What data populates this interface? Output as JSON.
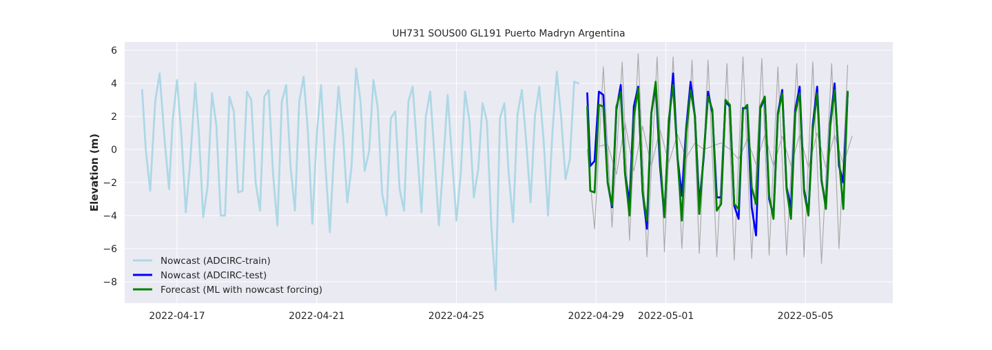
{
  "chart_data": {
    "type": "line",
    "title": "UH731 SOUS00 GL191 Puerto Madryn Argentina",
    "xlabel": "",
    "ylabel": "Elevation (m)",
    "x_axis": {
      "type": "date",
      "start": "2022-04-15T12:00",
      "end": "2022-05-07T12:00"
    },
    "ylim": [
      -9.3,
      6.5
    ],
    "grid": true,
    "legend_placement": "lower-left",
    "x_ticks": [
      "2022-04-17",
      "2022-04-21",
      "2022-04-25",
      "2022-04-29",
      "2022-05-01",
      "2022-05-05"
    ],
    "y_ticks": [
      6,
      4,
      2,
      0,
      -2,
      -4,
      -6,
      -8
    ],
    "colors": {
      "background": "#eaeaf2",
      "grid": "#ffffff",
      "train": "#add8e6",
      "test": "#0000ff",
      "forecast": "#008000",
      "observed": "#aaaaaa"
    },
    "series": [
      {
        "name": "",
        "role": "observed",
        "x": [
          "2022-04-28T18:00",
          "2022-04-28T23:00",
          "2022-04-29T05:00",
          "2022-04-29T11:00",
          "2022-04-29T18:00",
          "2022-04-29T23:00",
          "2022-04-30T05:00",
          "2022-04-30T11:00",
          "2022-04-30T18:00",
          "2022-04-30T23:00",
          "2022-05-01T05:00",
          "2022-05-01T11:00",
          "2022-05-01T18:00",
          "2022-05-01T23:00",
          "2022-05-02T05:00",
          "2022-05-02T11:00",
          "2022-05-02T18:00",
          "2022-05-02T23:00",
          "2022-05-03T05:00",
          "2022-05-03T11:00",
          "2022-05-03T18:00",
          "2022-05-03T23:00",
          "2022-05-04T05:00",
          "2022-05-04T11:00",
          "2022-05-04T18:00",
          "2022-05-04T23:00",
          "2022-05-05T05:00",
          "2022-05-05T11:00",
          "2022-05-05T18:00",
          "2022-05-05T23:00",
          "2022-05-06T05:00"
        ],
        "values": [
          0.0,
          -4.8,
          5.0,
          -4.7,
          5.3,
          -5.5,
          5.8,
          -6.5,
          5.6,
          -6.2,
          5.6,
          -6.0,
          5.4,
          -6.3,
          5.4,
          -6.5,
          5.2,
          -6.7,
          5.6,
          -6.6,
          5.5,
          -6.4,
          5.0,
          -6.4,
          5.2,
          -6.5,
          5.3,
          -6.9,
          5.2,
          -6.0,
          5.1
        ]
      },
      {
        "name": "",
        "role": "observed",
        "x": [
          "2022-04-29T02:00",
          "2022-04-29T08:00",
          "2022-04-29T14:00",
          "2022-04-29T20:00",
          "2022-04-30T02:00",
          "2022-04-30T08:00",
          "2022-04-30T14:00",
          "2022-04-30T20:00",
          "2022-05-01T02:00",
          "2022-05-01T08:00",
          "2022-05-01T14:00",
          "2022-05-01T20:00",
          "2022-05-02T02:00",
          "2022-05-02T08:00",
          "2022-05-02T14:00",
          "2022-05-02T20:00",
          "2022-05-03T02:00",
          "2022-05-03T08:00",
          "2022-05-03T14:00",
          "2022-05-03T20:00",
          "2022-05-04T02:00",
          "2022-05-04T08:00",
          "2022-05-04T14:00",
          "2022-05-04T20:00",
          "2022-05-05T02:00",
          "2022-05-05T08:00",
          "2022-05-05T14:00",
          "2022-05-05T20:00",
          "2022-05-06T02:00",
          "2022-05-06T08:00"
        ],
        "values": [
          0.2,
          0.3,
          -1.5,
          1.6,
          -1.3,
          1.4,
          -1.0,
          1.2,
          -0.8,
          0.9,
          -0.5,
          0.4,
          0.0,
          0.2,
          0.4,
          0.0,
          -0.6,
          0.6,
          -0.9,
          0.9,
          -1.0,
          0.8,
          -1.0,
          0.9,
          -1.1,
          1.0,
          -1.1,
          0.9,
          -0.9,
          0.8
        ]
      },
      {
        "name": "Nowcast (ADCIRC-train)",
        "role": "train",
        "x": [
          "2022-04-16T00:00",
          "2022-04-16T02:30",
          "2022-04-16T05:30",
          "2022-04-16T09:00",
          "2022-04-16T12:00",
          "2022-04-16T15:30",
          "2022-04-16T18:30",
          "2022-04-16T21:00",
          "2022-04-17T00:00",
          "2022-04-17T03:00",
          "2022-04-17T06:00",
          "2022-04-17T09:00",
          "2022-04-17T12:30",
          "2022-04-17T15:00",
          "2022-04-17T18:00",
          "2022-04-17T21:00",
          "2022-04-18T00:00",
          "2022-04-18T03:00",
          "2022-04-18T06:00",
          "2022-04-18T09:00",
          "2022-04-18T12:00",
          "2022-04-18T15:00",
          "2022-04-18T18:00",
          "2022-04-18T21:00",
          "2022-04-19T00:00",
          "2022-04-19T03:00",
          "2022-04-19T06:00",
          "2022-04-19T09:00",
          "2022-04-19T12:00",
          "2022-04-19T15:00",
          "2022-04-19T18:00",
          "2022-04-19T21:00",
          "2022-04-20T00:00",
          "2022-04-20T03:00",
          "2022-04-20T06:00",
          "2022-04-20T09:00",
          "2022-04-20T12:00",
          "2022-04-20T15:00",
          "2022-04-20T18:00",
          "2022-04-20T21:00",
          "2022-04-21T00:00",
          "2022-04-21T03:00",
          "2022-04-21T06:00",
          "2022-04-21T09:00",
          "2022-04-21T12:00",
          "2022-04-21T15:00",
          "2022-04-21T18:00",
          "2022-04-21T21:00",
          "2022-04-22T00:00",
          "2022-04-22T03:00",
          "2022-04-22T06:00",
          "2022-04-22T09:00",
          "2022-04-22T12:00",
          "2022-04-22T15:00",
          "2022-04-22T18:00",
          "2022-04-22T21:00",
          "2022-04-23T00:00",
          "2022-04-23T03:00",
          "2022-04-23T06:00",
          "2022-04-23T09:00",
          "2022-04-23T12:00",
          "2022-04-23T15:00",
          "2022-04-23T18:00",
          "2022-04-23T21:00",
          "2022-04-24T00:00",
          "2022-04-24T03:00",
          "2022-04-24T06:00",
          "2022-04-24T09:00",
          "2022-04-24T12:00",
          "2022-04-24T15:00",
          "2022-04-24T18:00",
          "2022-04-24T21:00",
          "2022-04-25T00:00",
          "2022-04-25T03:00",
          "2022-04-25T06:00",
          "2022-04-25T09:00",
          "2022-04-25T12:00",
          "2022-04-25T15:00",
          "2022-04-25T18:00",
          "2022-04-25T21:00",
          "2022-04-26T00:00",
          "2022-04-26T03:00",
          "2022-04-26T06:00",
          "2022-04-26T09:00",
          "2022-04-26T12:00",
          "2022-04-26T15:00",
          "2022-04-26T18:00",
          "2022-04-26T21:00",
          "2022-04-27T00:00",
          "2022-04-27T03:00",
          "2022-04-27T06:00",
          "2022-04-27T09:00",
          "2022-04-27T12:00",
          "2022-04-27T15:00",
          "2022-04-27T18:00",
          "2022-04-27T21:00",
          "2022-04-28T00:00",
          "2022-04-28T03:00",
          "2022-04-28T06:00",
          "2022-04-28T09:00",
          "2022-04-28T12:00"
        ],
        "values": [
          3.6,
          0.0,
          -2.5,
          2.9,
          4.6,
          0.5,
          -2.4,
          1.8,
          4.2,
          0.8,
          -3.8,
          -0.8,
          4.0,
          1.0,
          -4.1,
          -2.2,
          3.4,
          1.5,
          -4.0,
          -4.0,
          3.2,
          2.3,
          -2.6,
          -2.5,
          3.5,
          3.0,
          -2.0,
          -3.7,
          3.2,
          3.6,
          -1.5,
          -4.6,
          2.9,
          3.9,
          -1.0,
          -3.7,
          2.9,
          4.4,
          1.0,
          -4.5,
          0.9,
          3.9,
          -1.0,
          -5.0,
          0.0,
          3.8,
          1.0,
          -3.2,
          -1.0,
          4.9,
          3.0,
          -1.3,
          -0.1,
          4.2,
          2.5,
          -2.7,
          -4.0,
          1.9,
          2.3,
          -2.4,
          -3.7,
          2.9,
          3.8,
          0.0,
          -3.8,
          2.0,
          3.5,
          -0.5,
          -4.6,
          -0.8,
          3.3,
          -0.5,
          -4.3,
          -1.5,
          3.5,
          1.7,
          -2.9,
          -1.2,
          2.8,
          1.7,
          -4.6,
          -8.5,
          1.9,
          2.8,
          -1.5,
          -4.4,
          2.1,
          3.6,
          0.5,
          -3.2,
          2.0,
          3.8,
          0.5,
          -4.0,
          1.0,
          4.7,
          2.0,
          -1.8,
          -0.6,
          4.1,
          4.0
        ]
      },
      {
        "name": "Nowcast (ADCIRC-test)",
        "role": "test",
        "x": [
          "2022-04-28T18:00",
          "2022-04-28T20:00",
          "2022-04-28T23:00",
          "2022-04-29T02:00",
          "2022-04-29T05:00",
          "2022-04-29T08:00",
          "2022-04-29T11:00",
          "2022-04-29T14:00",
          "2022-04-29T17:00",
          "2022-04-29T20:00",
          "2022-04-29T23:00",
          "2022-04-30T02:00",
          "2022-04-30T05:00",
          "2022-04-30T08:00",
          "2022-04-30T11:00",
          "2022-04-30T14:00",
          "2022-04-30T17:00",
          "2022-04-30T20:00",
          "2022-04-30T23:00",
          "2022-05-01T02:00",
          "2022-05-01T05:00",
          "2022-05-01T08:00",
          "2022-05-01T11:00",
          "2022-05-01T14:00",
          "2022-05-01T17:00",
          "2022-05-01T20:00",
          "2022-05-01T23:00",
          "2022-05-02T02:00",
          "2022-05-02T05:00",
          "2022-05-02T08:00",
          "2022-05-02T11:00",
          "2022-05-02T14:00",
          "2022-05-02T17:00",
          "2022-05-02T20:00",
          "2022-05-02T23:00",
          "2022-05-03T02:00",
          "2022-05-03T05:00",
          "2022-05-03T08:00",
          "2022-05-03T11:00",
          "2022-05-03T14:00",
          "2022-05-03T17:00",
          "2022-05-03T20:00",
          "2022-05-03T23:00",
          "2022-05-04T02:00",
          "2022-05-04T05:00",
          "2022-05-04T08:00",
          "2022-05-04T11:00",
          "2022-05-04T14:00",
          "2022-05-04T17:00",
          "2022-05-04T20:00",
          "2022-05-04T23:00",
          "2022-05-05T02:00",
          "2022-05-05T05:00",
          "2022-05-05T08:00",
          "2022-05-05T11:00",
          "2022-05-05T14:00",
          "2022-05-05T17:00",
          "2022-05-05T20:00",
          "2022-05-05T23:00",
          "2022-05-06T02:00",
          "2022-05-06T05:00"
        ],
        "values": [
          3.4,
          -1.0,
          -0.7,
          3.5,
          3.3,
          -2.0,
          -3.5,
          2.4,
          3.9,
          -1.5,
          -3.2,
          2.6,
          3.8,
          -2.6,
          -4.8,
          2.2,
          3.9,
          -1.0,
          -4.1,
          1.5,
          4.6,
          -0.5,
          -2.8,
          1.3,
          4.1,
          2.0,
          -3.3,
          -0.5,
          3.5,
          2.2,
          -2.9,
          -2.9,
          2.9,
          2.6,
          -3.4,
          -4.2,
          2.5,
          2.5,
          -3.5,
          -5.2,
          2.5,
          3.1,
          -3.0,
          -4.0,
          2.2,
          3.6,
          -2.3,
          -3.5,
          2.4,
          3.8,
          -2.4,
          -3.9,
          1.5,
          3.8,
          -1.9,
          -3.4,
          1.6,
          4.0,
          -1.0,
          -2.0,
          3.4
        ]
      },
      {
        "name": "Forecast (ML with nowcast forcing)",
        "role": "forecast",
        "x": [
          "2022-04-28T18:00",
          "2022-04-28T20:00",
          "2022-04-28T23:00",
          "2022-04-29T02:00",
          "2022-04-29T05:00",
          "2022-04-29T08:00",
          "2022-04-29T11:00",
          "2022-04-29T14:00",
          "2022-04-29T17:00",
          "2022-04-29T20:00",
          "2022-04-29T23:00",
          "2022-04-30T02:00",
          "2022-04-30T05:00",
          "2022-04-30T08:00",
          "2022-04-30T11:00",
          "2022-04-30T14:00",
          "2022-04-30T17:00",
          "2022-04-30T20:00",
          "2022-04-30T23:00",
          "2022-05-01T02:00",
          "2022-05-01T05:00",
          "2022-05-01T08:00",
          "2022-05-01T11:00",
          "2022-05-01T14:00",
          "2022-05-01T17:00",
          "2022-05-01T20:00",
          "2022-05-01T23:00",
          "2022-05-02T02:00",
          "2022-05-02T05:00",
          "2022-05-02T08:00",
          "2022-05-02T11:00",
          "2022-05-02T14:00",
          "2022-05-02T17:00",
          "2022-05-02T20:00",
          "2022-05-02T23:00",
          "2022-05-03T02:00",
          "2022-05-03T05:00",
          "2022-05-03T08:00",
          "2022-05-03T11:00",
          "2022-05-03T14:00",
          "2022-05-03T17:00",
          "2022-05-03T20:00",
          "2022-05-03T23:00",
          "2022-05-04T02:00",
          "2022-05-04T05:00",
          "2022-05-04T08:00",
          "2022-05-04T11:00",
          "2022-05-04T14:00",
          "2022-05-04T17:00",
          "2022-05-04T20:00",
          "2022-05-04T23:00",
          "2022-05-05T02:00",
          "2022-05-05T05:00",
          "2022-05-05T08:00",
          "2022-05-05T11:00",
          "2022-05-05T14:00",
          "2022-05-05T17:00",
          "2022-05-05T20:00",
          "2022-05-05T23:00",
          "2022-05-06T02:00",
          "2022-05-06T05:00"
        ],
        "values": [
          2.6,
          -2.5,
          -2.6,
          2.7,
          2.6,
          -2.0,
          -3.4,
          2.6,
          3.5,
          -1.5,
          -4.0,
          2.0,
          3.7,
          -2.6,
          -4.3,
          2.2,
          4.1,
          -0.5,
          -4.1,
          1.8,
          3.9,
          -0.5,
          -4.3,
          1.0,
          3.6,
          2.0,
          -3.9,
          -0.3,
          3.2,
          2.4,
          -3.7,
          -3.3,
          3.0,
          2.7,
          -3.3,
          -3.6,
          2.4,
          2.7,
          -2.3,
          -3.3,
          2.6,
          3.2,
          -2.8,
          -4.2,
          2.1,
          3.4,
          -2.4,
          -4.2,
          2.2,
          3.4,
          -2.6,
          -4.0,
          1.2,
          3.4,
          -1.8,
          -3.6,
          1.4,
          3.6,
          -0.6,
          -3.6,
          3.5
        ]
      }
    ]
  }
}
